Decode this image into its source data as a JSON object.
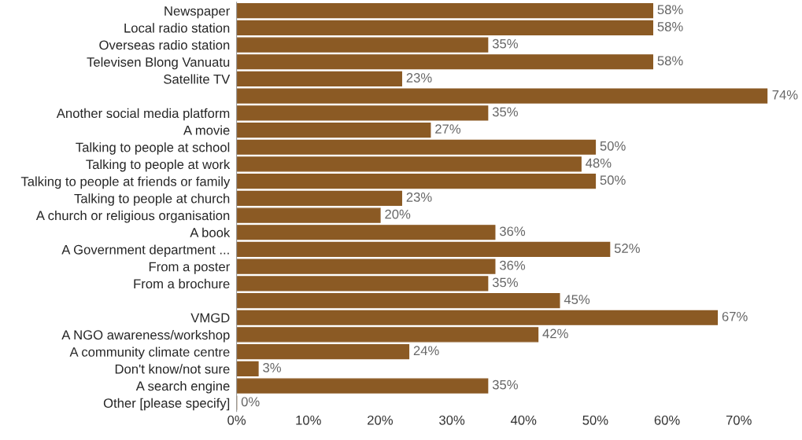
{
  "chart_data": {
    "type": "bar",
    "orientation": "horizontal",
    "categories": [
      "Newspaper",
      "Local radio station",
      "Overseas radio station",
      "Televisen Blong Vanuatu",
      "Satellite TV",
      null,
      "Another social media platform",
      "A movie",
      "Talking to people at school",
      "Talking to people at work",
      "Talking to people at friends or family",
      "Talking to people at church",
      "A church or religious organisation",
      "A book",
      "A Government department ...",
      "From a poster",
      "From a brochure",
      null,
      "VMGD",
      "A NGO awareness/workshop",
      "A community climate centre",
      "Don't know/not sure",
      "A search engine",
      "Other [please specify]"
    ],
    "values": [
      58,
      58,
      35,
      58,
      23,
      74,
      35,
      27,
      50,
      48,
      50,
      23,
      20,
      36,
      52,
      36,
      35,
      45,
      67,
      42,
      24,
      3,
      35,
      0
    ],
    "value_labels": [
      "58%",
      "58%",
      "35%",
      "58%",
      "23%",
      "74%",
      "35%",
      "27%",
      "50%",
      "48%",
      "50%",
      "23%",
      "20%",
      "36%",
      "52%",
      "36%",
      "35%",
      "45%",
      "67%",
      "42%",
      "24%",
      "3%",
      "35%",
      "0%"
    ],
    "color": "#8b5a24",
    "xlim": [
      0,
      74
    ],
    "xticks": [
      {
        "value": 0,
        "label": "0%"
      },
      {
        "value": 10,
        "label": "10%"
      },
      {
        "value": 20,
        "label": "20%"
      },
      {
        "value": 30,
        "label": "30%"
      },
      {
        "value": 40,
        "label": "40%"
      },
      {
        "value": 50,
        "label": "50%"
      },
      {
        "value": 60,
        "label": "60%"
      },
      {
        "value": 70,
        "label": "70%"
      }
    ],
    "grid": false,
    "legend": false
  }
}
